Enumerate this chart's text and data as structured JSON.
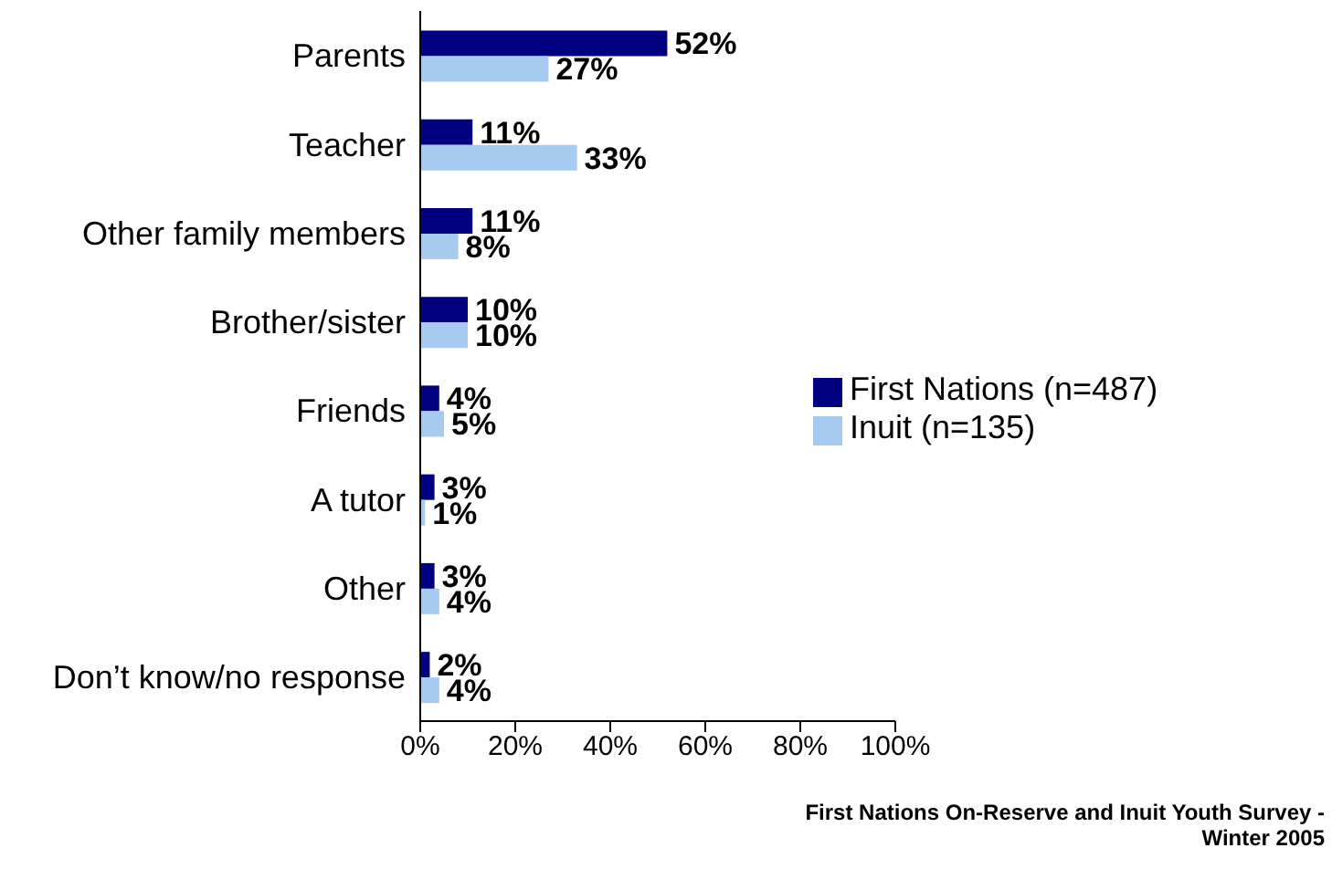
{
  "chart_data": {
    "type": "bar",
    "orientation": "horizontal",
    "categories": [
      "Parents",
      "Teacher",
      "Other family members",
      "Brother/sister",
      "Friends",
      "A tutor",
      "Other",
      "Don’t know/no response"
    ],
    "series": [
      {
        "name": "First Nations (n=487)",
        "color": "#000080",
        "values": [
          52,
          11,
          11,
          10,
          4,
          3,
          3,
          2
        ],
        "value_labels": [
          "52%",
          "11%",
          "11%",
          "10%",
          "4%",
          "3%",
          "3%",
          "2%"
        ]
      },
      {
        "name": "Inuit (n=135)",
        "color": "#a6caf0",
        "values": [
          27,
          33,
          8,
          10,
          5,
          1,
          4,
          4
        ],
        "value_labels": [
          "27%",
          "33%",
          "8%",
          "10%",
          "5%",
          "1%",
          "4%",
          "4%"
        ]
      }
    ],
    "xlim": [
      0,
      100
    ],
    "xticks": [
      {
        "value": 0,
        "label": "0%"
      },
      {
        "value": 20,
        "label": "20%"
      },
      {
        "value": 40,
        "label": "40%"
      },
      {
        "value": 60,
        "label": "60%"
      },
      {
        "value": 80,
        "label": "80%"
      },
      {
        "value": 100,
        "label": "100%"
      }
    ],
    "grid": false,
    "legend": "right",
    "annotations": [
      "First Nations On-Reserve and Inuit Youth Survey - Winter 2005"
    ]
  }
}
